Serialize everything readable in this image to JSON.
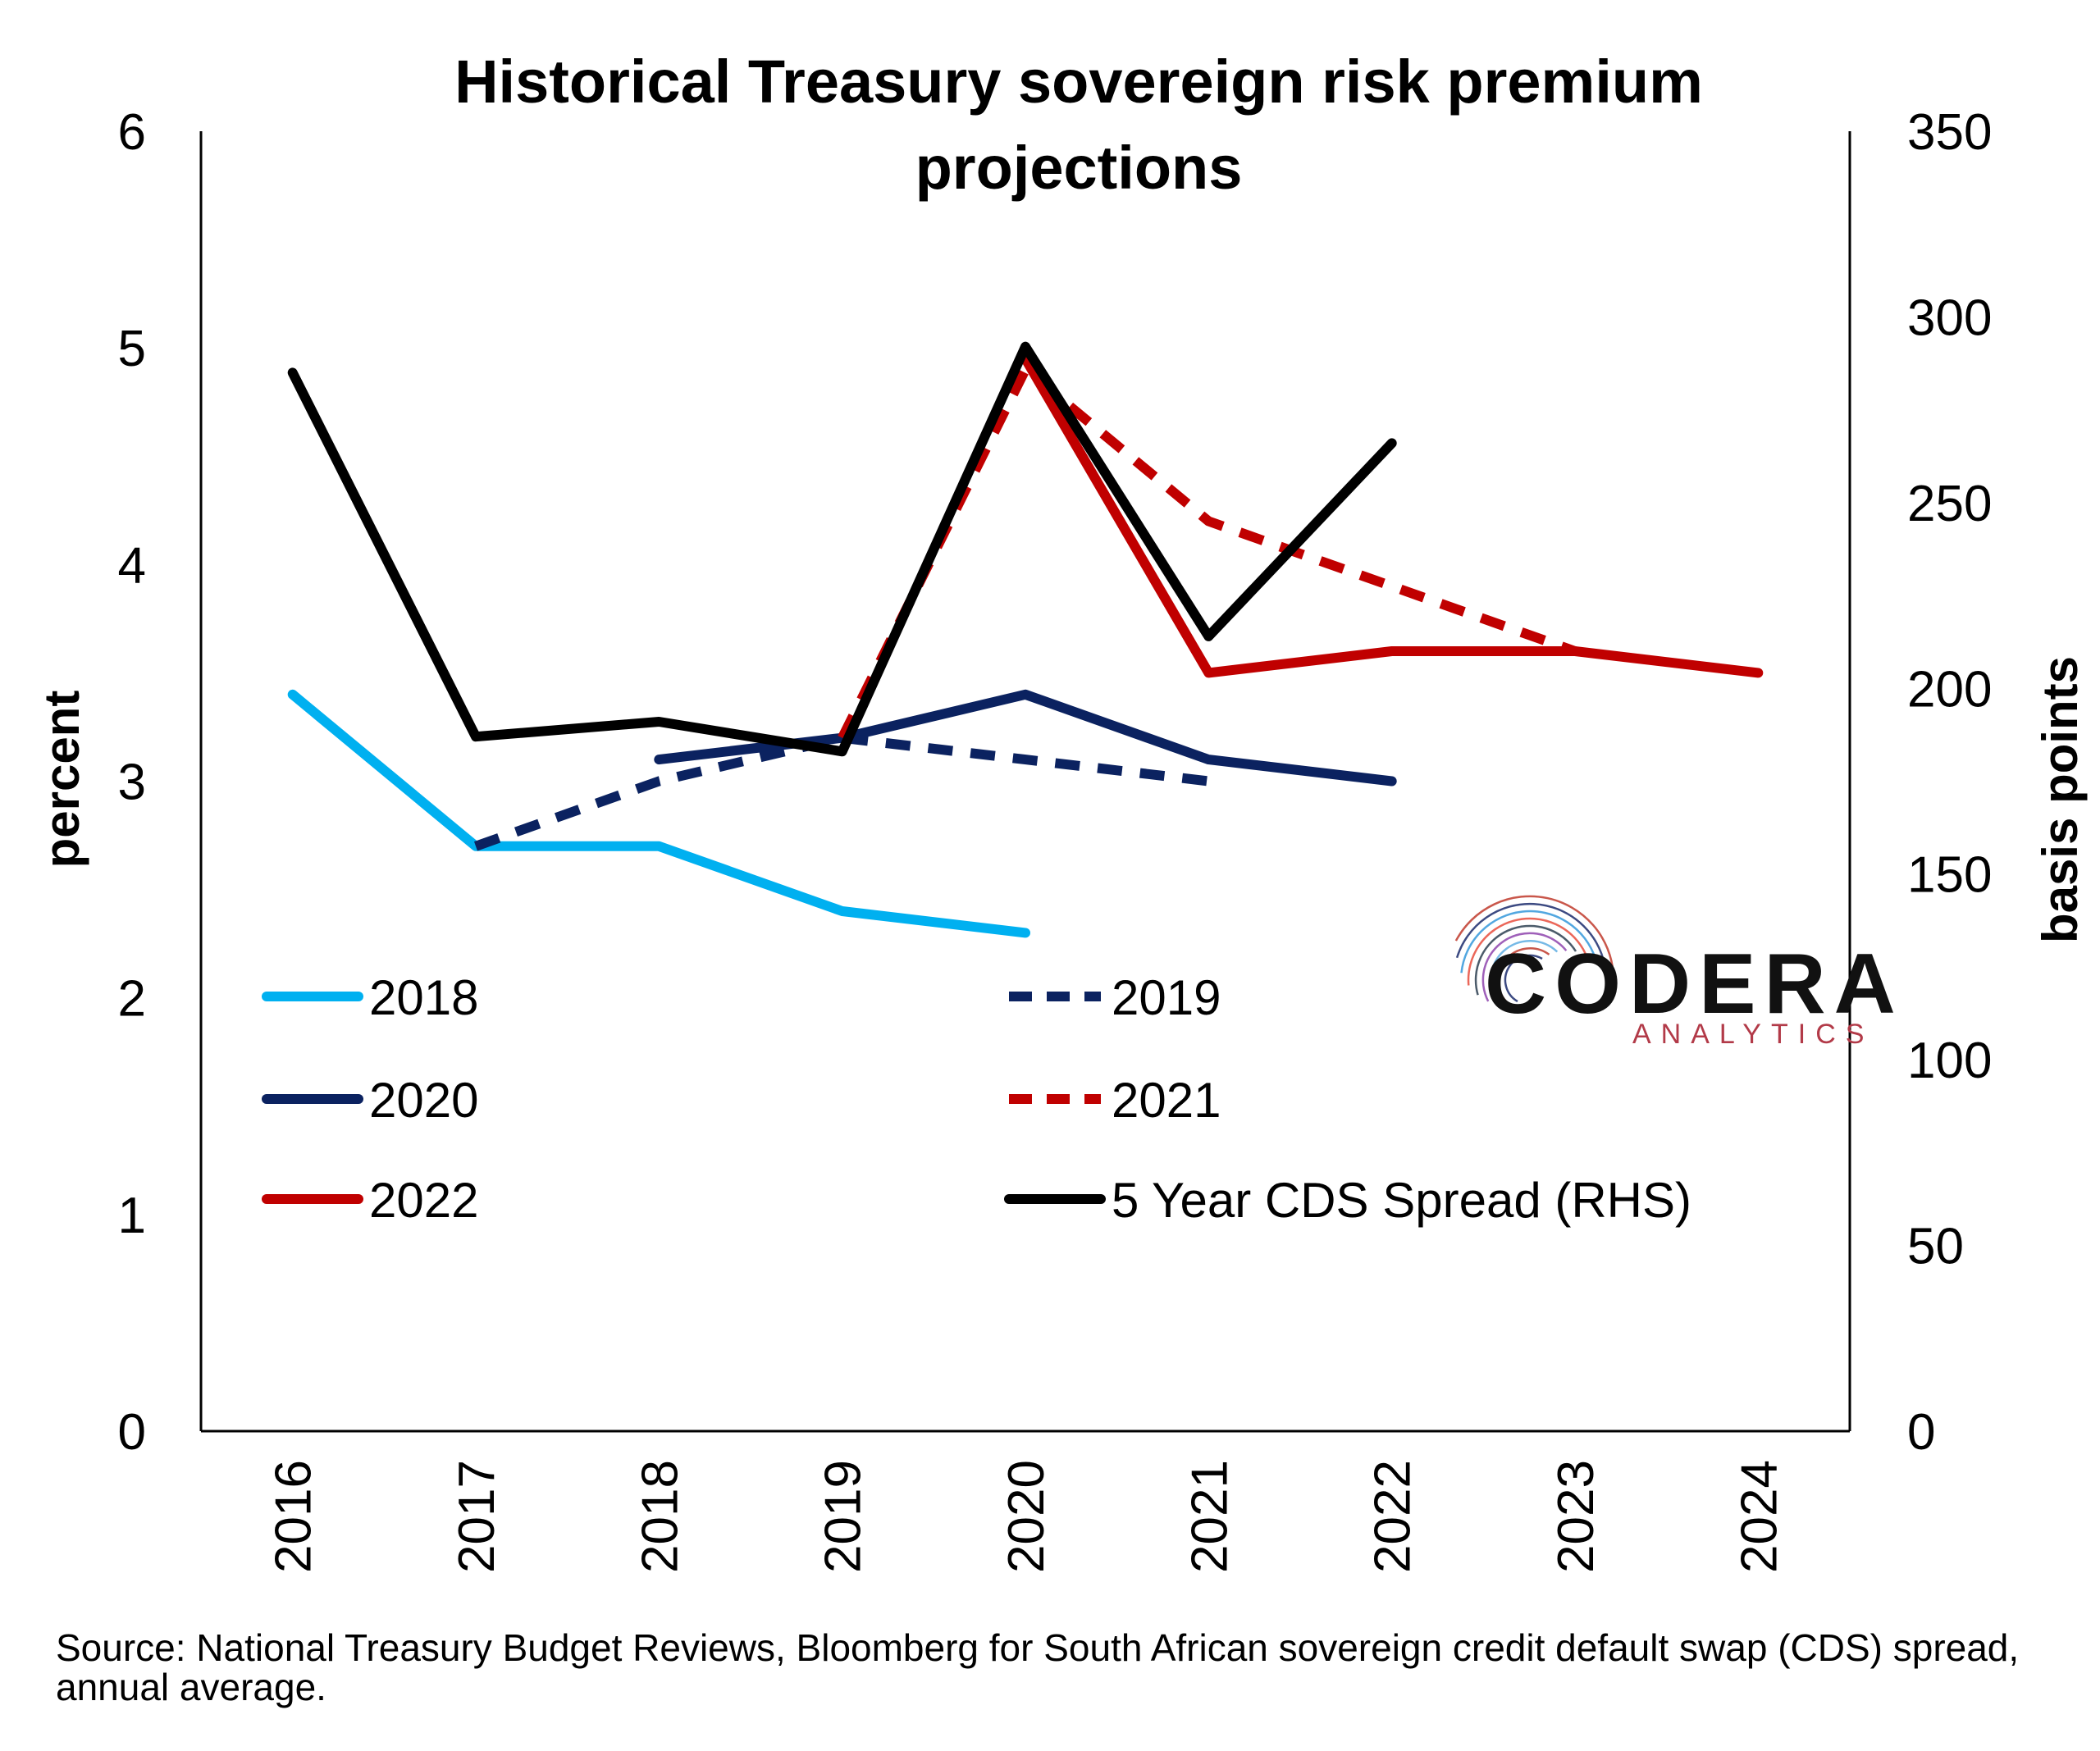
{
  "chart_data": {
    "type": "line",
    "title": "Historical Treasury sovereign risk premium projections",
    "title_lines": [
      "Historical Treasury sovereign risk premium",
      "projections"
    ],
    "x": [
      "2016",
      "2017",
      "2018",
      "2019",
      "2020",
      "2021",
      "2022",
      "2023",
      "2024"
    ],
    "ylabel": "percent",
    "y2label": "basis points",
    "ylim": [
      0,
      6
    ],
    "y2lim": [
      0,
      350
    ],
    "yticks": [
      "0",
      "1",
      "2",
      "3",
      "4",
      "5",
      "6"
    ],
    "y2ticks": [
      "0",
      "50",
      "100",
      "150",
      "200",
      "250",
      "300",
      "350"
    ],
    "grid": false,
    "legend_position": "lower-left",
    "series": [
      {
        "name": "2018",
        "axis": "left",
        "style": "solid",
        "color": "#00B0F0",
        "values": [
          3.4,
          2.7,
          2.7,
          2.4,
          2.3,
          null,
          null,
          null,
          null
        ]
      },
      {
        "name": "2019",
        "axis": "left",
        "style": "dashed",
        "color": "#0B2260",
        "values": [
          null,
          2.7,
          3.0,
          3.2,
          3.1,
          3.0,
          null,
          null,
          null
        ]
      },
      {
        "name": "2020",
        "axis": "left",
        "style": "solid",
        "color": "#0B2260",
        "values": [
          null,
          null,
          3.1,
          3.2,
          3.4,
          3.1,
          3.0,
          null,
          null
        ]
      },
      {
        "name": "2021",
        "axis": "left",
        "style": "dashed",
        "color": "#C00000",
        "values": [
          null,
          null,
          null,
          3.2,
          4.9,
          4.2,
          3.9,
          3.6,
          null
        ]
      },
      {
        "name": "2022",
        "axis": "left",
        "style": "solid",
        "color": "#C00000",
        "values": [
          null,
          null,
          null,
          null,
          4.95,
          3.5,
          3.6,
          3.6,
          3.5
        ]
      },
      {
        "name": "5 Year CDS Spread (RHS)",
        "axis": "right",
        "style": "solid",
        "color": "#000000",
        "values": [
          285,
          187,
          191,
          183,
          292,
          214,
          266,
          null,
          null
        ]
      }
    ]
  },
  "logo": {
    "name": "CODERA",
    "tagline": "ANALYTICS"
  },
  "source_note": "Source: National Treasury Budget Reviews, Bloomberg for South African sovereign credit default swap (CDS) spread, annual average."
}
